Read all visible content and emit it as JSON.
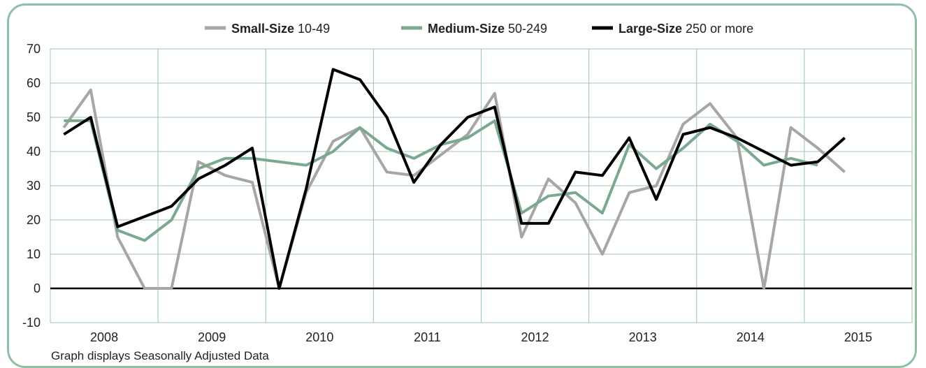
{
  "chart_data": {
    "type": "line",
    "ylim": [
      -10,
      70
    ],
    "yticks": [
      -10,
      0,
      10,
      20,
      30,
      40,
      50,
      60,
      70
    ],
    "year_labels": [
      "2008",
      "2009",
      "2010",
      "2011",
      "2012",
      "2013",
      "2014",
      "2015"
    ],
    "points_per_year": 4,
    "grid": true,
    "legend_position": "top",
    "colors": {
      "grid": "#9cc5ad",
      "frame": "#8fbfa5",
      "zero_line": "#000000"
    },
    "series": [
      {
        "name": "Small-Size",
        "range": "10-49",
        "color": "#a6a6a6",
        "values": [
          47,
          58,
          15,
          0,
          0,
          37,
          33,
          31,
          0,
          28,
          43,
          47,
          34,
          33,
          39,
          45,
          57,
          15,
          32,
          25,
          10,
          28,
          30,
          48,
          54,
          44,
          0,
          47,
          41,
          34
        ]
      },
      {
        "name": "Medium-Size",
        "range": "50-249",
        "color": "#7aa98f",
        "values": [
          49,
          49,
          17,
          14,
          20,
          35,
          38,
          38,
          null,
          36,
          40,
          47,
          41,
          38,
          42,
          44,
          49,
          22,
          27,
          28,
          22,
          42,
          35,
          41,
          48,
          43,
          36,
          38,
          36,
          null
        ]
      },
      {
        "name": "Large-Size",
        "range": "250 or more",
        "color": "#000000",
        "values": [
          45,
          50,
          18,
          21,
          24,
          32,
          36,
          41,
          0,
          29,
          64,
          61,
          50,
          31,
          42,
          50,
          53,
          19,
          19,
          34,
          33,
          44,
          26,
          45,
          47,
          44,
          40,
          36,
          37,
          44
        ]
      }
    ]
  },
  "footnote": "Graph displays Seasonally Adjusted Data"
}
